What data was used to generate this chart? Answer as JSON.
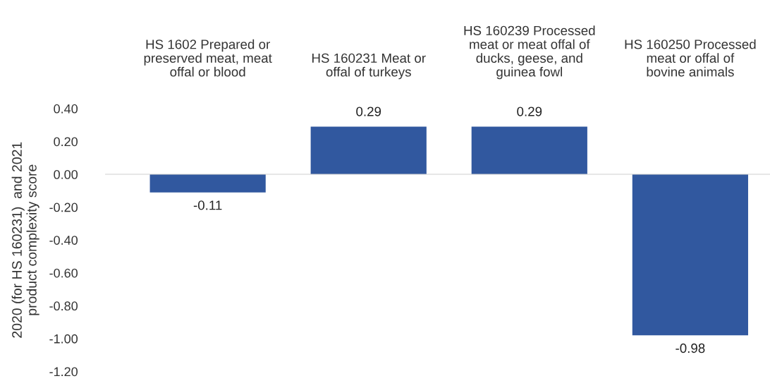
{
  "chart_data": {
    "type": "bar",
    "categories": [
      "HS 1602 Prepared or\npreserved meat, meat\noffal or blood",
      "HS 160231 Meat or\noffal of turkeys",
      "HS 160239 Processed\nmeat or meat offal of\nducks, geese, and\nguinea fowl",
      "HS 160250 Processed\nmeat or offal of\nbovine animals"
    ],
    "values": [
      -0.11,
      0.29,
      0.29,
      -0.98
    ],
    "color": "#31589f",
    "ylabel": "2020 (for HS 160231)  and 2021\nproduct complexity score",
    "ylim": [
      -1.2,
      0.4
    ],
    "yticks": [
      {
        "value": 0.4,
        "label": "0.40"
      },
      {
        "value": 0.2,
        "label": "0.20"
      },
      {
        "value": 0,
        "label": "0.00"
      },
      {
        "value": -0.2,
        "label": "-0.20"
      },
      {
        "value": -0.4,
        "label": "-0.40"
      },
      {
        "value": -0.6,
        "label": "-0.60"
      },
      {
        "value": -0.8,
        "label": "-0.80"
      },
      {
        "value": -1.0,
        "label": "-1.00"
      },
      {
        "value": -1.2,
        "label": "-1.20"
      }
    ],
    "data_labels": true,
    "legend": false
  }
}
